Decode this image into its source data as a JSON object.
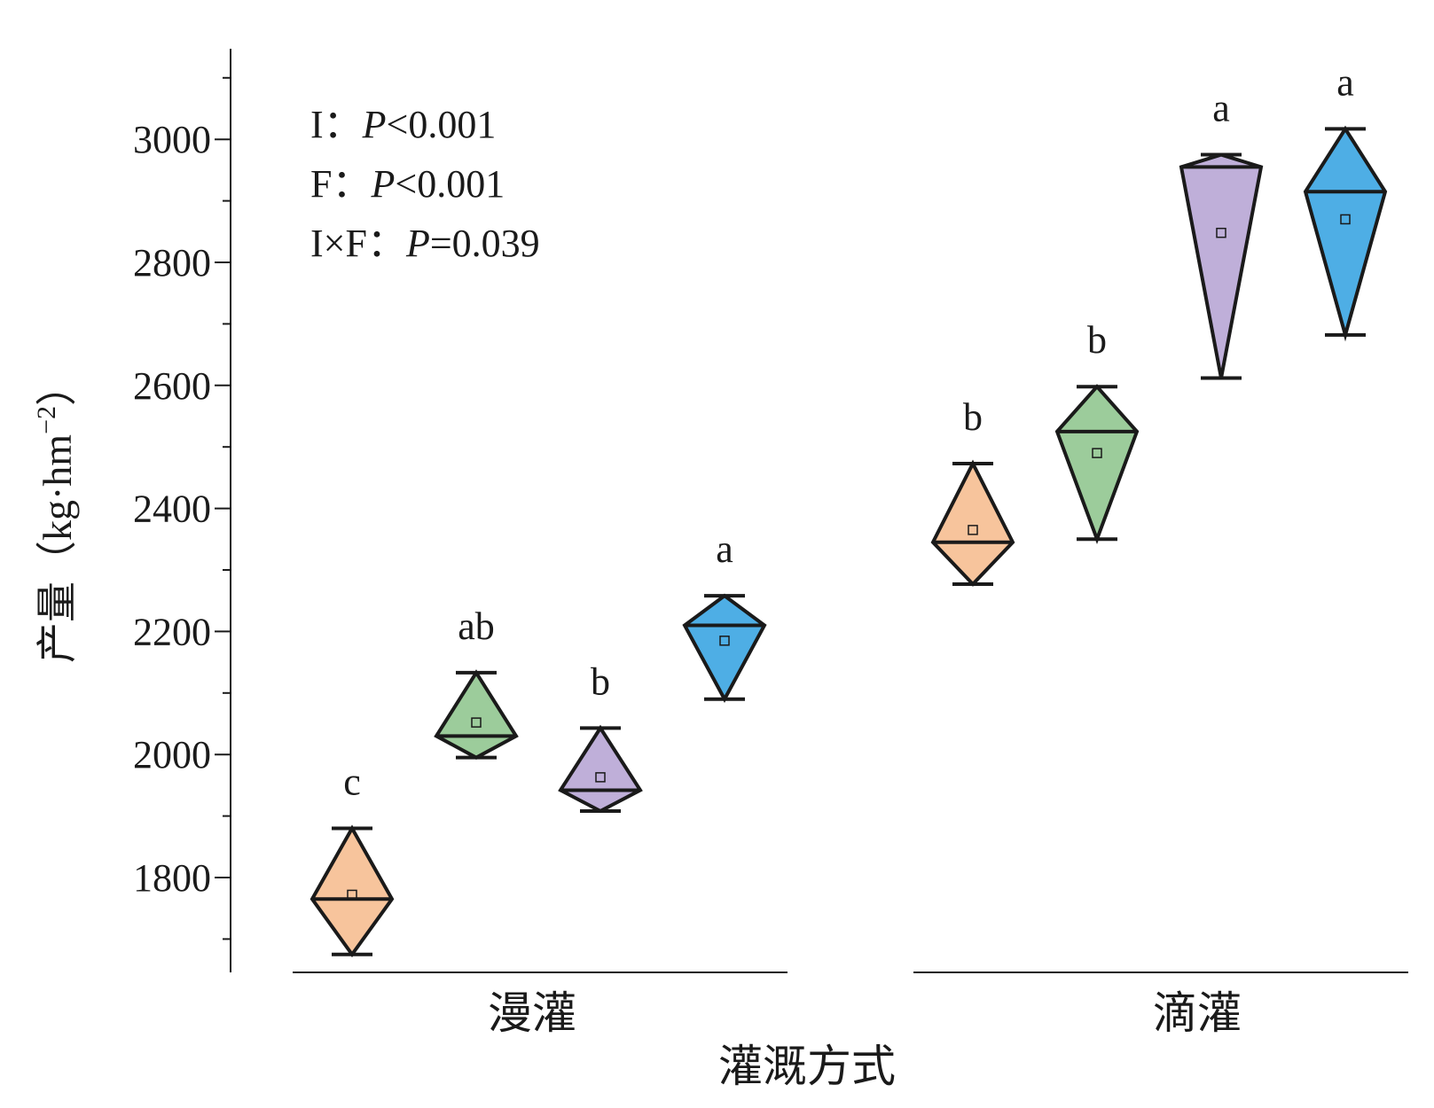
{
  "chart_data": {
    "type": "box",
    "title": "",
    "ylabel": "产量（kg·hm⁻²）",
    "ylabel_parts": {
      "prefix": "产量（kg·hm",
      "exp": "−2",
      "suffix": "）"
    },
    "xlabel": "灌溉方式",
    "groups": [
      "漫灌",
      "滴灌"
    ],
    "ylim": [
      1650,
      3150
    ],
    "yticks": [
      1800,
      2000,
      2200,
      2400,
      2600,
      2800,
      3000
    ],
    "ytick_labels": [
      "1800",
      "2000",
      "2200",
      "2400",
      "2600",
      "2800",
      "3000"
    ],
    "annotations": [
      {
        "factor": "I：",
        "p_symbol": "P",
        "value": "<0.001"
      },
      {
        "factor": "F：",
        "p_symbol": "P",
        "value": "<0.001"
      },
      {
        "factor": "I×F：",
        "p_symbol": "P",
        "value": "=0.039"
      }
    ],
    "colors": [
      "#F7C49C",
      "#9CCC9B",
      "#BFAFD9",
      "#4EAEE5"
    ],
    "boxes": [
      {
        "group": "漫灌",
        "color_index": 0,
        "max": 1880,
        "median": 1765,
        "mean": 1772,
        "min": 1675,
        "letter": "c"
      },
      {
        "group": "漫灌",
        "color_index": 1,
        "max": 2133,
        "median": 2030,
        "mean": 2052,
        "min": 1995,
        "letter": "ab"
      },
      {
        "group": "漫灌",
        "color_index": 2,
        "max": 2043,
        "median": 1942,
        "mean": 1963,
        "min": 1908,
        "letter": "b"
      },
      {
        "group": "漫灌",
        "color_index": 3,
        "max": 2258,
        "median": 2210,
        "mean": 2185,
        "min": 2090,
        "letter": "a"
      },
      {
        "group": "滴灌",
        "color_index": 0,
        "max": 2473,
        "median": 2345,
        "mean": 2365,
        "min": 2277,
        "letter": "b"
      },
      {
        "group": "滴灌",
        "color_index": 1,
        "max": 2598,
        "median": 2525,
        "mean": 2490,
        "min": 2350,
        "letter": "b"
      },
      {
        "group": "滴灌",
        "color_index": 2,
        "max": 2975,
        "median": 2955,
        "mean": 2848,
        "min": 2612,
        "letter": "a"
      },
      {
        "group": "滴灌",
        "color_index": 3,
        "max": 3017,
        "median": 2915,
        "mean": 2870,
        "min": 2682,
        "letter": "a"
      }
    ]
  }
}
